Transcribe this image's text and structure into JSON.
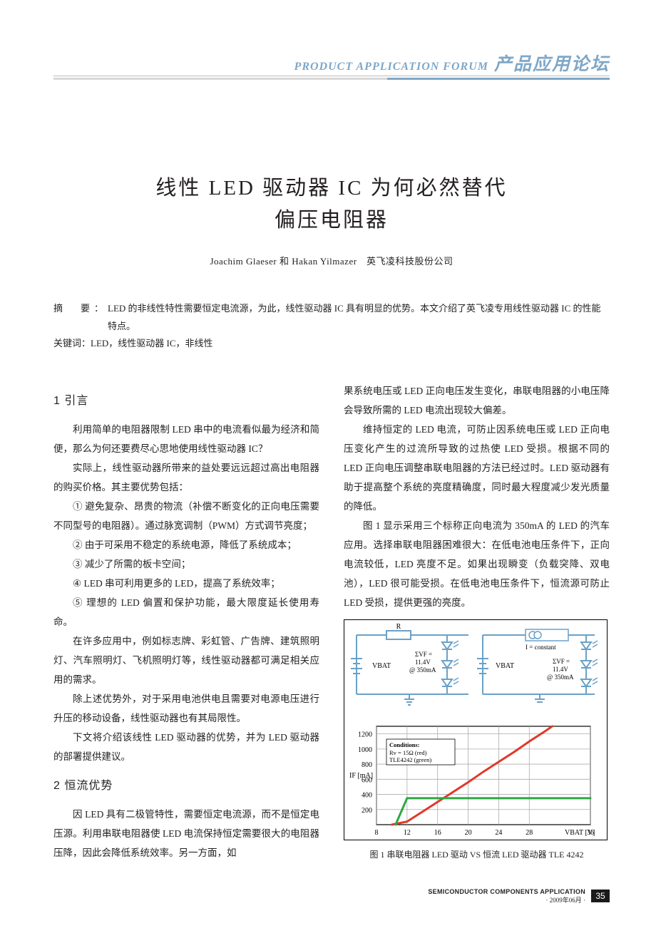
{
  "header": {
    "en": "PRODUCT  APPLICATION  FORUM",
    "cn": "产品应用论坛"
  },
  "title_line1": "线性 LED 驱动器 IC 为何必然替代",
  "title_line2": "偏压电阻器",
  "authors": "Joachim Glaeser 和 Hakan Yilmazer　英飞凌科技股份公司",
  "abstract": {
    "label": "摘　要：",
    "text": "LED 的非线性特性需要恒定电流源，为此，线性驱动器 IC 具有明显的优势。本文介绍了英飞凌专用线性驱动器 IC 的性能特点。"
  },
  "keywords": {
    "label": "关键词：",
    "text": "LED，线性驱动器 IC，非线性"
  },
  "sections": {
    "s1": {
      "head": "1  引言"
    },
    "s2": {
      "head": "2  恒流优势"
    }
  },
  "paras": {
    "p1": "利用简单的电阻器限制 LED 串中的电流看似最为经济和简便，那么为何还要费尽心思地使用线性驱动器 IC？",
    "p2": "实际上，线性驱动器所带来的益处要远远超过高出电阻器的购买价格。其主要优势包括：",
    "p3": "① 避免复杂、昂贵的物流（补偿不断变化的正向电压需要不同型号的电阻器）。通过脉宽调制（PWM）方式调节亮度；",
    "p4": "② 由于可采用不稳定的系统电源，降低了系统成本；",
    "p5": "③ 减少了所需的板卡空间；",
    "p6": "④ LED 串可利用更多的 LED，提高了系统效率；",
    "p7": "⑤ 理想的 LED 偏置和保护功能，最大限度延长使用寿命。",
    "p8": "在许多应用中，例如标志牌、彩虹管、广告牌、建筑照明灯、汽车照明灯、飞机照明灯等，线性驱动器都可满足相关应用的需求。",
    "p9": "除上述优势外，对于采用电池供电且需要对电源电压进行升压的移动设备，线性驱动器也有其局限性。",
    "p10": "下文将介绍该线性 LED 驱动器的优势，并为 LED 驱动器的部署提供建议。",
    "p11": "因 LED 具有二极管特性，需要恒定电流源，而不是恒定电压源。利用串联电阻器使 LED 电流保持恒定需要很大的电阻器压降，因此会降低系统效率。另一方面，如",
    "p12": "果系统电压或 LED 正向电压发生变化，串联电阻器的小电压降会导致所需的 LED 电流出现较大偏差。",
    "p13": "维持恒定的 LED 电流，可防止因系统电压或 LED 正向电压变化产生的过流所导致的过热使 LED 受损。根据不同的 LED 正向电压调整串联电阻器的方法已经过时。LED 驱动器有助于提高整个系统的亮度精确度，同时最大程度减少发光质量的降低。",
    "p14": "图 1 显示采用三个标称正向电流为 350mA 的 LED 的汽车应用。选择串联电阻器困难很大：在低电池电压条件下，正向电流较低，LED 亮度不足。如果出现瞬变（负载突降、双电池），LED 很可能受损。在低电池电压条件下，恒流源可防止 LED 受损，提供更强的亮度。"
  },
  "figure1": {
    "caption": "图 1  串联电阻器 LED 驱动 VS 恒流 LED 驱动器 TLE 4242",
    "circuit": {
      "r_label": "R",
      "vbat": "VBAT",
      "vf_text1": "ΣVF =",
      "vf_text2": "11.4V",
      "vf_text3": "@ 350mA",
      "i_const": "I = constant"
    },
    "chart": {
      "type": "line",
      "xlabel": "VBAT [V]",
      "ylabel": "IF [mA]",
      "xlim": [
        8,
        36
      ],
      "ylim": [
        0,
        1300
      ],
      "xticks": [
        8,
        12,
        16,
        20,
        24,
        28,
        36
      ],
      "yticks": [
        200,
        400,
        600,
        800,
        1000,
        1200
      ],
      "conditions_title": "Conditions:",
      "conditions_l1": "Rv = 15Ω (red)",
      "conditions_l2": "TLE4242 (green)",
      "background_color": "#ffffff",
      "grid_color": "#acacaf",
      "border_color": "#000000",
      "series": [
        {
          "name": "resistor",
          "color": "#e0382a",
          "width": 3,
          "points": [
            [
              10,
              0
            ],
            [
              12,
              40
            ],
            [
              14,
              170
            ],
            [
              16,
              300
            ],
            [
              18,
              430
            ],
            [
              20,
              560
            ],
            [
              22,
              700
            ],
            [
              24,
              830
            ],
            [
              26,
              960
            ],
            [
              28,
              1100
            ],
            [
              30,
              1230
            ],
            [
              31,
              1300
            ]
          ]
        },
        {
          "name": "tle4242",
          "color": "#2fa843",
          "width": 3,
          "points": [
            [
              10.5,
              0
            ],
            [
              12,
              350
            ],
            [
              14,
              350
            ],
            [
              18,
              350
            ],
            [
              24,
              350
            ],
            [
              30,
              350
            ],
            [
              36,
              350
            ]
          ]
        }
      ]
    }
  },
  "footer": {
    "en": "SEMICONDUCTOR COMPONENTS APPLICATION",
    "date": "· 2009年06月 ·",
    "page": "35"
  }
}
